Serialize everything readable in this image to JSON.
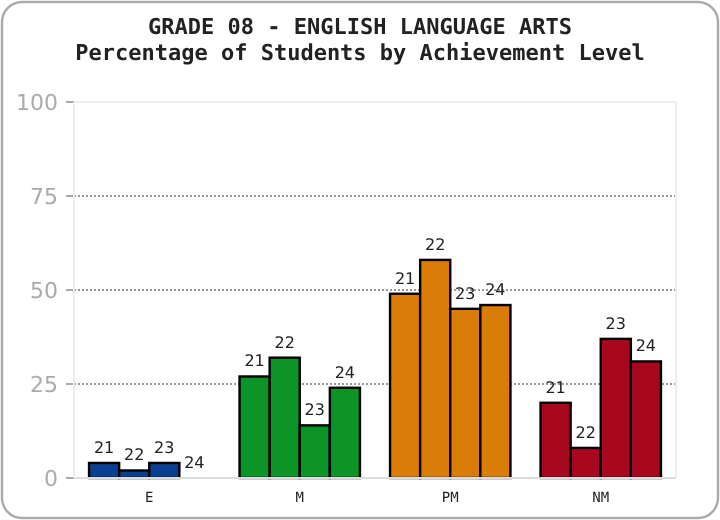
{
  "chart_data": {
    "type": "bar",
    "title": "GRADE 08 - ENGLISH LANGUAGE ARTS",
    "subtitle": "Percentage of Students by Achievement Level",
    "categories": [
      "E",
      "M",
      "PM",
      "NM"
    ],
    "series": [
      {
        "name": "21",
        "colors": [
          "#0b3f8f",
          "#0c9426",
          "#d97c08",
          "#a8081e"
        ],
        "values": [
          4,
          27,
          49,
          20
        ]
      },
      {
        "name": "22",
        "colors": [
          "#0b3f8f",
          "#0c9426",
          "#d97c08",
          "#a8081e"
        ],
        "values": [
          2,
          32,
          58,
          8
        ]
      },
      {
        "name": "23",
        "colors": [
          "#0b3f8f",
          "#0c9426",
          "#d97c08",
          "#a8081e"
        ],
        "values": [
          4,
          14,
          45,
          37
        ]
      },
      {
        "name": "24",
        "colors": [
          "#0b3f8f",
          "#0c9426",
          "#d97c08",
          "#a8081e"
        ],
        "values": [
          0,
          24,
          46,
          31
        ]
      }
    ],
    "ylim": [
      0,
      100
    ],
    "yticks": [
      0,
      25,
      50,
      75,
      100
    ],
    "grid": "y"
  }
}
